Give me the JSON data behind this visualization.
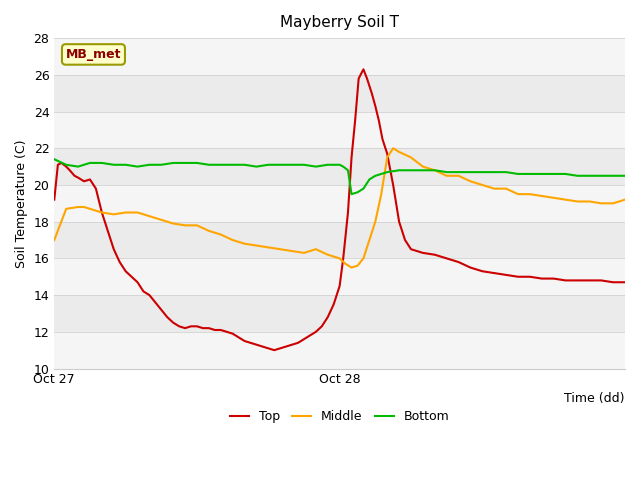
{
  "title": "Mayberry Soil T",
  "xlabel": "Time (dd)",
  "ylabel": "Soil Temperature (C)",
  "ylim": [
    10,
    28
  ],
  "xlim": [
    0,
    48
  ],
  "xtick_positions": [
    0,
    24,
    48
  ],
  "xtick_labels": [
    "Oct 27",
    "Oct 28",
    ""
  ],
  "ytick_positions": [
    10,
    12,
    14,
    16,
    18,
    20,
    22,
    24,
    26,
    28
  ],
  "band_color_light": "#ebebeb",
  "band_color_white": "#f5f5f5",
  "annotation_text": "MB_met",
  "annotation_bg": "#ffffcc",
  "annotation_border": "#999900",
  "top_color": "#cc0000",
  "middle_color": "#ffa500",
  "bottom_color": "#00bb00",
  "grid_color": "#cccccc",
  "top_data": {
    "x": [
      0,
      0.3,
      0.6,
      1.0,
      1.3,
      1.7,
      2.0,
      2.5,
      3.0,
      3.5,
      4.0,
      4.5,
      5.0,
      5.5,
      6.0,
      6.5,
      7.0,
      7.5,
      8.0,
      8.5,
      9.0,
      9.5,
      10.0,
      10.5,
      11.0,
      11.5,
      12.0,
      12.5,
      13.0,
      13.5,
      14.0,
      14.5,
      15.0,
      15.5,
      16.0,
      16.5,
      17.0,
      17.5,
      18.0,
      18.5,
      19.0,
      19.5,
      20.0,
      20.5,
      21.0,
      21.5,
      22.0,
      22.5,
      23.0,
      23.5,
      24.0,
      24.3,
      24.7,
      25.0,
      25.3,
      25.6,
      26.0,
      26.3,
      26.7,
      27.0,
      27.3,
      27.6,
      28.0,
      28.5,
      29.0,
      29.5,
      30.0,
      31.0,
      32.0,
      33.0,
      34.0,
      35.0,
      36.0,
      37.0,
      38.0,
      39.0,
      40.0,
      41.0,
      42.0,
      43.0,
      44.0,
      45.0,
      46.0,
      47.0,
      48.0
    ],
    "y": [
      19.2,
      21.1,
      21.2,
      21.0,
      20.8,
      20.5,
      20.4,
      20.2,
      20.3,
      19.8,
      18.5,
      17.5,
      16.5,
      15.8,
      15.3,
      15.0,
      14.7,
      14.2,
      14.0,
      13.6,
      13.2,
      12.8,
      12.5,
      12.3,
      12.2,
      12.3,
      12.3,
      12.2,
      12.2,
      12.1,
      12.1,
      12.0,
      11.9,
      11.7,
      11.5,
      11.4,
      11.3,
      11.2,
      11.1,
      11.0,
      11.1,
      11.2,
      11.3,
      11.4,
      11.6,
      11.8,
      12.0,
      12.3,
      12.8,
      13.5,
      14.5,
      16.0,
      18.5,
      21.5,
      23.5,
      25.8,
      26.3,
      25.8,
      25.0,
      24.3,
      23.5,
      22.5,
      21.7,
      20.0,
      18.0,
      17.0,
      16.5,
      16.3,
      16.2,
      16.0,
      15.8,
      15.5,
      15.3,
      15.2,
      15.1,
      15.0,
      15.0,
      14.9,
      14.9,
      14.8,
      14.8,
      14.8,
      14.8,
      14.7,
      14.7
    ]
  },
  "middle_data": {
    "x": [
      0,
      1,
      2,
      2.5,
      3.0,
      3.5,
      4.0,
      5.0,
      6.0,
      7.0,
      8.0,
      9.0,
      10.0,
      11.0,
      12.0,
      13.0,
      14.0,
      15.0,
      16.0,
      17.0,
      18.0,
      19.0,
      20.0,
      21.0,
      22.0,
      23.0,
      24.0,
      24.5,
      25.0,
      25.5,
      26.0,
      26.5,
      27.0,
      27.5,
      28.0,
      28.5,
      29.0,
      30.0,
      31.0,
      32.0,
      33.0,
      34.0,
      35.0,
      36.0,
      37.0,
      38.0,
      39.0,
      40.0,
      41.0,
      42.0,
      43.0,
      44.0,
      45.0,
      46.0,
      47.0,
      48.0
    ],
    "y": [
      17.0,
      18.7,
      18.8,
      18.8,
      18.7,
      18.6,
      18.5,
      18.4,
      18.5,
      18.5,
      18.3,
      18.1,
      17.9,
      17.8,
      17.8,
      17.5,
      17.3,
      17.0,
      16.8,
      16.7,
      16.6,
      16.5,
      16.4,
      16.3,
      16.5,
      16.2,
      16.0,
      15.7,
      15.5,
      15.6,
      16.0,
      17.0,
      18.0,
      19.5,
      21.5,
      22.0,
      21.8,
      21.5,
      21.0,
      20.8,
      20.5,
      20.5,
      20.2,
      20.0,
      19.8,
      19.8,
      19.5,
      19.5,
      19.4,
      19.3,
      19.2,
      19.1,
      19.1,
      19.0,
      19.0,
      19.2
    ]
  },
  "bottom_data": {
    "x": [
      0,
      1,
      2,
      3,
      4,
      5,
      6,
      7,
      8,
      9,
      10,
      11,
      12,
      13,
      14,
      15,
      16,
      17,
      18,
      19,
      20,
      21,
      22,
      23,
      24.0,
      24.3,
      24.7,
      25.0,
      25.5,
      26.0,
      26.5,
      27.0,
      27.5,
      28.0,
      29.0,
      30.0,
      31.0,
      32.0,
      33.0,
      34.0,
      35.0,
      36.0,
      37.0,
      38.0,
      39.0,
      40.0,
      41.0,
      42.0,
      43.0,
      44.0,
      45.0,
      46.0,
      47.0,
      48.0
    ],
    "y": [
      21.4,
      21.1,
      21.0,
      21.2,
      21.2,
      21.1,
      21.1,
      21.0,
      21.1,
      21.1,
      21.2,
      21.2,
      21.2,
      21.1,
      21.1,
      21.1,
      21.1,
      21.0,
      21.1,
      21.1,
      21.1,
      21.1,
      21.0,
      21.1,
      21.1,
      21.0,
      20.8,
      19.5,
      19.6,
      19.8,
      20.3,
      20.5,
      20.6,
      20.7,
      20.8,
      20.8,
      20.8,
      20.8,
      20.7,
      20.7,
      20.7,
      20.7,
      20.7,
      20.7,
      20.6,
      20.6,
      20.6,
      20.6,
      20.6,
      20.5,
      20.5,
      20.5,
      20.5,
      20.5
    ]
  }
}
